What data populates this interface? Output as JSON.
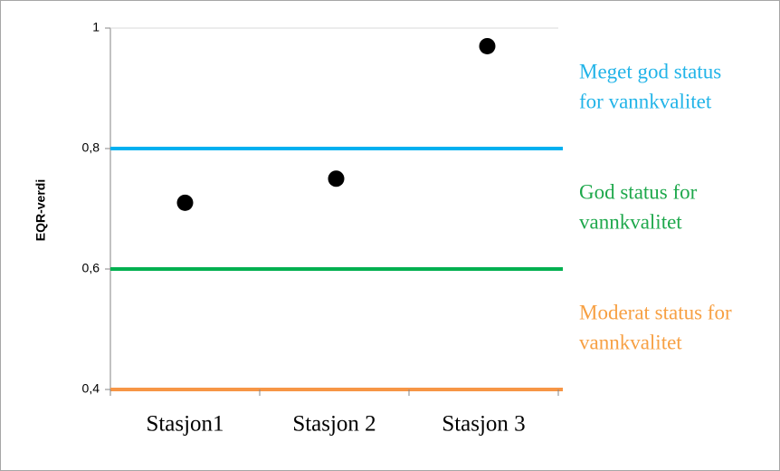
{
  "chart_data": {
    "type": "scatter",
    "y_label": "EQR-verdi",
    "categories": [
      "Stasjon1",
      "Stasjon 2",
      "Stasjon 3"
    ],
    "values": [
      0.71,
      0.75,
      0.97
    ],
    "color": "#000000",
    "ylim": [
      0.4,
      1
    ],
    "yticks": [
      {
        "value": 0.4,
        "label": "0,4"
      },
      {
        "value": 0.6,
        "label": "0,6"
      },
      {
        "value": 0.8,
        "label": "0,8"
      },
      1
    ],
    "thresholds": [
      {
        "value": 0.8,
        "color": "#00b0f0",
        "text_color": "#22b4e8",
        "label_lines": [
          "Meget god status",
          "for vannkvalitet"
        ]
      },
      {
        "value": 0.6,
        "color": "#00b050",
        "text_color": "#1ea84c",
        "label_lines": [
          "God status for",
          "vannkvalitet"
        ]
      },
      {
        "value": 0.4,
        "color": "#f79646",
        "text_color": "#f7a043",
        "label_lines": [
          "Moderat status for",
          "vannkvalitet"
        ]
      }
    ]
  }
}
